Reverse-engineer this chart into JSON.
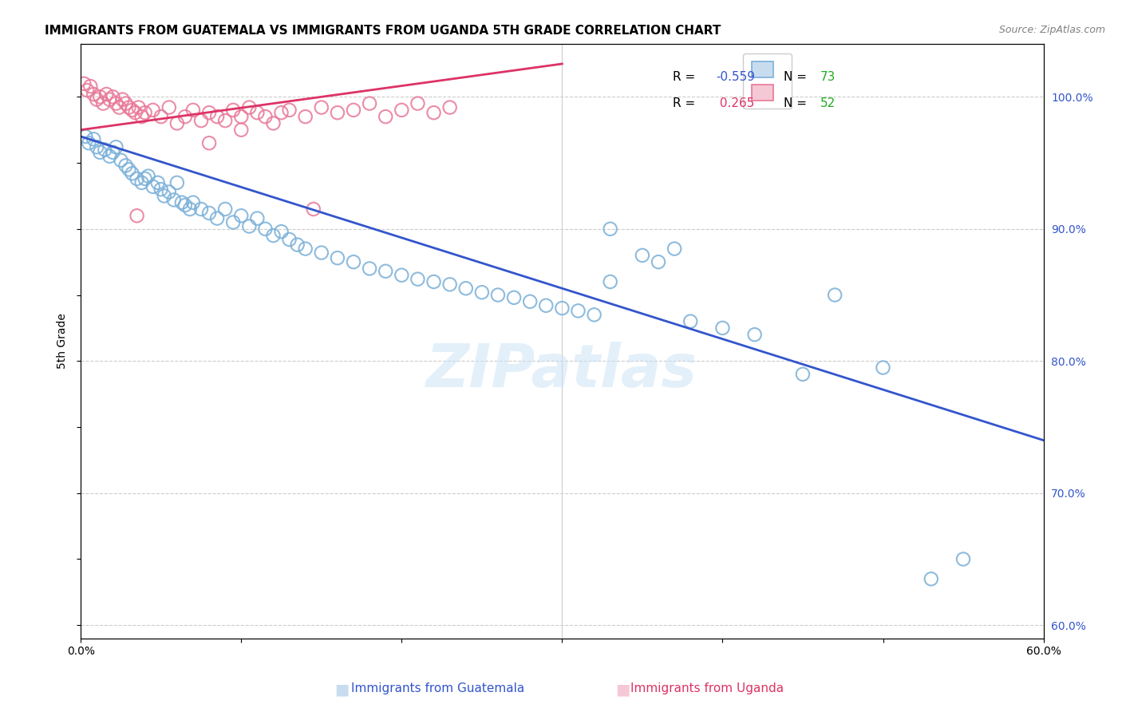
{
  "title": "IMMIGRANTS FROM GUATEMALA VS IMMIGRANTS FROM UGANDA 5TH GRADE CORRELATION CHART",
  "source": "Source: ZipAtlas.com",
  "ylabel": "5th Grade",
  "xlim": [
    0.0,
    60.0
  ],
  "ylim": [
    59.0,
    104.0
  ],
  "y_right_ticks": [
    60,
    70,
    80,
    90,
    100
  ],
  "y_right_labels": [
    "60.0%",
    "70.0%",
    "80.0%",
    "90.0%",
    "100.0%"
  ],
  "watermark": "ZIPatlas",
  "blue_color": "#7ab0d8",
  "pink_color": "#e87898",
  "blue_line_color": "#3355cc",
  "pink_line_color": "#dd3366",
  "blue_line_x": [
    0.0,
    60.0
  ],
  "blue_line_y": [
    97.0,
    74.0
  ],
  "pink_line_x": [
    0.0,
    30.0
  ],
  "pink_line_y": [
    97.5,
    102.5
  ],
  "blue_scatter_x": [
    0.3,
    0.5,
    0.8,
    1.0,
    1.2,
    1.5,
    1.8,
    2.0,
    2.2,
    2.5,
    2.8,
    3.0,
    3.2,
    3.5,
    3.8,
    4.0,
    4.2,
    4.5,
    4.8,
    5.0,
    5.2,
    5.5,
    5.8,
    6.0,
    6.3,
    6.5,
    6.8,
    7.0,
    7.5,
    8.0,
    8.5,
    9.0,
    9.5,
    10.0,
    10.5,
    11.0,
    11.5,
    12.0,
    12.5,
    13.0,
    13.5,
    14.0,
    15.0,
    16.0,
    17.0,
    18.0,
    19.0,
    20.0,
    21.0,
    22.0,
    23.0,
    24.0,
    25.0,
    26.0,
    27.0,
    28.0,
    29.0,
    30.0,
    31.0,
    32.0,
    33.0,
    35.0,
    37.0,
    38.0,
    40.0,
    42.0,
    45.0,
    47.0,
    50.0,
    33.0,
    36.0,
    53.0,
    55.0
  ],
  "blue_scatter_y": [
    97.0,
    96.5,
    96.8,
    96.2,
    95.8,
    96.0,
    95.5,
    95.8,
    96.2,
    95.2,
    94.8,
    94.5,
    94.2,
    93.8,
    93.5,
    93.8,
    94.0,
    93.2,
    93.5,
    93.0,
    92.5,
    92.8,
    92.2,
    93.5,
    92.0,
    91.8,
    91.5,
    92.0,
    91.5,
    91.2,
    90.8,
    91.5,
    90.5,
    91.0,
    90.2,
    90.8,
    90.0,
    89.5,
    89.8,
    89.2,
    88.8,
    88.5,
    88.2,
    87.8,
    87.5,
    87.0,
    86.8,
    86.5,
    86.2,
    86.0,
    85.8,
    85.5,
    85.2,
    85.0,
    84.8,
    84.5,
    84.2,
    84.0,
    83.8,
    83.5,
    90.0,
    88.0,
    88.5,
    83.0,
    82.5,
    82.0,
    79.0,
    85.0,
    79.5,
    86.0,
    87.5,
    63.5,
    65.0
  ],
  "pink_scatter_x": [
    0.2,
    0.4,
    0.6,
    0.8,
    1.0,
    1.2,
    1.4,
    1.6,
    1.8,
    2.0,
    2.2,
    2.4,
    2.6,
    2.8,
    3.0,
    3.2,
    3.4,
    3.6,
    3.8,
    4.0,
    4.5,
    5.0,
    5.5,
    6.0,
    6.5,
    7.0,
    7.5,
    8.0,
    8.5,
    9.0,
    9.5,
    10.0,
    10.5,
    11.0,
    11.5,
    12.0,
    12.5,
    13.0,
    14.0,
    15.0,
    16.0,
    17.0,
    18.0,
    19.0,
    20.0,
    21.0,
    22.0,
    23.0,
    10.0,
    8.0,
    3.5,
    14.5
  ],
  "pink_scatter_y": [
    101.0,
    100.5,
    100.8,
    100.2,
    99.8,
    100.0,
    99.5,
    100.2,
    99.8,
    100.0,
    99.5,
    99.2,
    99.8,
    99.5,
    99.2,
    99.0,
    98.8,
    99.2,
    98.5,
    98.8,
    99.0,
    98.5,
    99.2,
    98.0,
    98.5,
    99.0,
    98.2,
    98.8,
    98.5,
    98.2,
    99.0,
    98.5,
    99.2,
    98.8,
    98.5,
    98.0,
    98.8,
    99.0,
    98.5,
    99.2,
    98.8,
    99.0,
    99.5,
    98.5,
    99.0,
    99.5,
    98.8,
    99.2,
    97.5,
    96.5,
    91.0,
    91.5
  ],
  "grid_color": "#cccccc",
  "bg_color": "#ffffff",
  "title_fontsize": 11,
  "tick_fontsize": 10,
  "right_tick_color": "#3355cc"
}
